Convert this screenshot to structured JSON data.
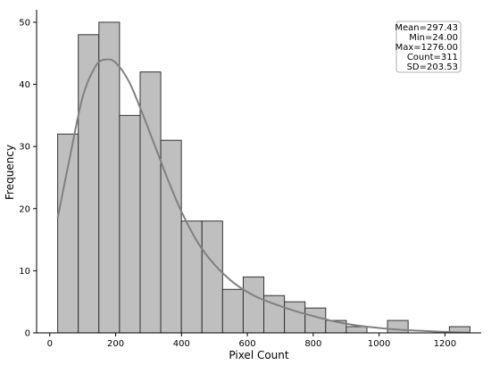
{
  "chart_data": {
    "type": "histogram",
    "xlabel": "Pixel Count",
    "ylabel": "Frequency",
    "xlim": [
      -40,
      1310
    ],
    "ylim": [
      0,
      52
    ],
    "x_ticks": [
      0,
      200,
      400,
      600,
      800,
      1000,
      1200
    ],
    "y_ticks": [
      0,
      10,
      20,
      30,
      40,
      50
    ],
    "grid": false,
    "bar_color": "#bfbfbf",
    "bar_edge_color": "#333333",
    "kde_color": "#808080",
    "bin_start": 24,
    "bin_width": 62.6,
    "counts": [
      32,
      48,
      50,
      35,
      42,
      31,
      18,
      18,
      7,
      9,
      6,
      5,
      4,
      2,
      1,
      0,
      2,
      0,
      0,
      1
    ],
    "kde_curve": {
      "x": [
        24,
        60,
        100,
        140,
        170,
        200,
        240,
        280,
        320,
        360,
        400,
        450,
        500,
        560,
        620,
        680,
        740,
        800,
        860,
        920,
        980,
        1040,
        1100,
        1160,
        1220,
        1276
      ],
      "y": [
        18.5,
        28,
        38,
        43,
        44,
        43.5,
        40.5,
        35.5,
        30,
        24.5,
        19.5,
        14.5,
        11,
        8,
        6,
        4.7,
        3.6,
        2.7,
        1.9,
        1.3,
        0.9,
        0.6,
        0.4,
        0.25,
        0.12,
        0.05
      ]
    },
    "stats_box": {
      "placement": "top-right",
      "lines": [
        "Mean=297.43",
        "Min=24.00",
        "Max=1276.00",
        "Count=311",
        "SD=203.53"
      ]
    }
  }
}
